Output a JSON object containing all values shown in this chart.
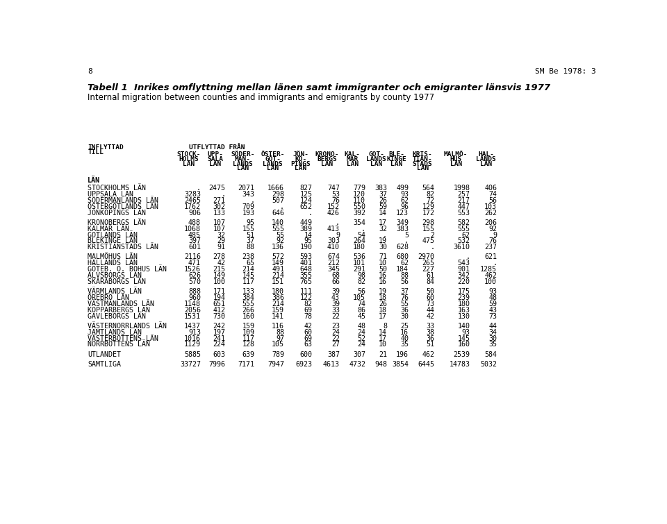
{
  "page_num": "8",
  "ref": "SM Be 1978: 3",
  "title_sv": "Tabell 1  Inrikes omflyttning mellan länen samt immigranter och emigranter länsvis 1977",
  "title_en": "Internal migration between counties and immigrants and emigrants by county 1977",
  "col_headers": [
    [
      "STOCK-",
      "HOLMS",
      "LÄN"
    ],
    [
      "UPP-",
      "SALA",
      "LÄN"
    ],
    [
      "SÖDER-",
      "MAN-",
      "LANDS",
      "LÄN"
    ],
    [
      "ÖSTER-",
      "GÖT-",
      "LANDS",
      "LÄN"
    ],
    [
      "JÖN-",
      "KÖ-",
      "PINGS",
      "LÄN"
    ],
    [
      "KRONO-",
      "BERGS",
      "LÄN"
    ],
    [
      "KAL-",
      "MAR",
      "LÄN"
    ],
    [
      "GOT-",
      "LANDS",
      "LÄN"
    ],
    [
      "BLE-",
      "KINGE",
      "LÄN"
    ],
    [
      "KRIS-",
      "TIAN-",
      "STADS",
      "LÄN"
    ],
    [
      "MALMÖ-",
      "HUS",
      "LÄN"
    ],
    [
      "HAL-",
      "LANDS",
      "LÄN"
    ]
  ],
  "rows": [
    {
      "label": "STOCKHOLMS LÄN",
      "vals": [
        ".",
        "2475",
        "2071",
        "1666",
        "827",
        "747",
        "779",
        "383",
        "499",
        "564",
        "1998",
        "406"
      ],
      "gap": false,
      "bold": false
    },
    {
      "label": "UPPSALA LÄN",
      "vals": [
        "3283",
        ".",
        "343",
        "298",
        "125",
        "53",
        "120",
        "37",
        "93",
        "82",
        "257",
        "74"
      ],
      "gap": false,
      "bold": false
    },
    {
      "label": "SÖDERMANLANDS LÄN",
      "vals": [
        "2465",
        "271",
        ".",
        "507",
        "124",
        "76",
        "110",
        "26",
        "62",
        "72",
        "217",
        "56"
      ],
      "gap": false,
      "bold": false
    },
    {
      "label": "ÖSTERGÖTLANDS LÄN",
      "vals": [
        "1762",
        "302",
        "709",
        ".",
        "652",
        "152",
        "550",
        "59",
        "96",
        "129",
        "447",
        "103"
      ],
      "gap": false,
      "bold": false
    },
    {
      "label": "JÖNKÖPINGS LÄN",
      "vals": [
        "906",
        "133",
        "193",
        "646",
        ".",
        "426",
        "392",
        "14",
        "123",
        "172",
        "553",
        "262"
      ],
      "gap": true,
      "bold": false
    },
    {
      "label": "KRONOBERGS LÄN",
      "vals": [
        "488",
        "107",
        "95",
        "140",
        "449",
        ".",
        "354",
        "17",
        "349",
        "298",
        "582",
        "206"
      ],
      "gap": false,
      "bold": false
    },
    {
      "label": "KALMAR LÄN",
      "vals": [
        "1068",
        "107",
        "155",
        "555",
        "389",
        "413",
        ".",
        "32",
        "383",
        "155",
        "555",
        "92"
      ],
      "gap": false,
      "bold": false
    },
    {
      "label": "GOTLANDS LÄN",
      "vals": [
        "485",
        "32",
        "51",
        "55",
        "14",
        "9",
        "54",
        ".",
        "5",
        "2",
        "62",
        "9"
      ],
      "gap": false,
      "bold": false
    },
    {
      "label": "BLEKINGE LÄN",
      "vals": [
        "397",
        "29",
        "37",
        "92",
        "95",
        "303",
        "264",
        "19",
        ".",
        "475",
        "532",
        "76"
      ],
      "gap": false,
      "bold": false
    },
    {
      "label": "KRISTIANSTADS LÄN",
      "vals": [
        "601",
        "91",
        "88",
        "136",
        "190",
        "410",
        "180",
        "30",
        "628",
        ".",
        "3610",
        "237"
      ],
      "gap": true,
      "bold": false
    },
    {
      "label": "MALMÖHUS LÄN",
      "vals": [
        "2116",
        "278",
        "238",
        "572",
        "593",
        "674",
        "536",
        "71",
        "680",
        "2970",
        ".",
        "621"
      ],
      "gap": false,
      "bold": false
    },
    {
      "label": "HALLANDS LÄN",
      "vals": [
        "471",
        "42",
        "65",
        "149",
        "401",
        "212",
        "101",
        "10",
        "62",
        "265",
        "543",
        "."
      ],
      "gap": false,
      "bold": false
    },
    {
      "label": "GÖTEB. O. BOHUS LÄN",
      "vals": [
        "1526",
        "215",
        "214",
        "491",
        "648",
        "345",
        "291",
        "50",
        "184",
        "227",
        "901",
        "1285"
      ],
      "gap": false,
      "bold": false
    },
    {
      "label": "ÄLVSBORGS LÄN",
      "vals": [
        "626",
        "149",
        "145",
        "214",
        "355",
        "68",
        "98",
        "16",
        "88",
        "61",
        "342",
        "462"
      ],
      "gap": false,
      "bold": false
    },
    {
      "label": "SKARABORGS LÄN",
      "vals": [
        "570",
        "100",
        "117",
        "151",
        "765",
        "66",
        "82",
        "16",
        "56",
        "84",
        "220",
        "100"
      ],
      "gap": true,
      "bold": false
    },
    {
      "label": "VÄRMLANDS LÄN",
      "vals": [
        "888",
        "171",
        "133",
        "180",
        "111",
        "39",
        "56",
        "19",
        "37",
        "50",
        "175",
        "93"
      ],
      "gap": false,
      "bold": false
    },
    {
      "label": "ÖREBRO LÄN",
      "vals": [
        "960",
        "194",
        "384",
        "386",
        "122",
        "43",
        "105",
        "18",
        "76",
        "60",
        "239",
        "48"
      ],
      "gap": false,
      "bold": false
    },
    {
      "label": "VÄSTMANLANDS LÄN",
      "vals": [
        "1148",
        "651",
        "555",
        "214",
        "82",
        "39",
        "74",
        "26",
        "55",
        "73",
        "180",
        "59"
      ],
      "gap": false,
      "bold": false
    },
    {
      "label": "KOPPARBERGS LÄN",
      "vals": [
        "2056",
        "412",
        "266",
        "159",
        "69",
        "33",
        "86",
        "18",
        "36",
        "44",
        "163",
        "43"
      ],
      "gap": false,
      "bold": false
    },
    {
      "label": "GÄVLEBORGS LÄN",
      "vals": [
        "1531",
        "730",
        "160",
        "141",
        "78",
        "22",
        "45",
        "17",
        "30",
        "42",
        "130",
        "73"
      ],
      "gap": true,
      "bold": false
    },
    {
      "label": "VÄSTERNORRLANDS LÄN",
      "vals": [
        "1437",
        "242",
        "159",
        "116",
        "42",
        "23",
        "48",
        "8",
        "25",
        "33",
        "140",
        "44"
      ],
      "gap": false,
      "bold": false
    },
    {
      "label": "JÄMTLANDS LÄN",
      "vals": [
        "913",
        "197",
        "109",
        "88",
        "60",
        "24",
        "24",
        "14",
        "16",
        "38",
        "93",
        "34"
      ],
      "gap": false,
      "bold": false
    },
    {
      "label": "VÄSTERBOTTENS LÄN",
      "vals": [
        "1016",
        "241",
        "117",
        "97",
        "69",
        "22",
        "52",
        "17",
        "40",
        "36",
        "145",
        "30"
      ],
      "gap": false,
      "bold": false
    },
    {
      "label": "NORRBOTTENS LÄN",
      "vals": [
        "1129",
        "224",
        "128",
        "105",
        "63",
        "27",
        "24",
        "10",
        "35",
        "51",
        "160",
        "35"
      ],
      "gap": true,
      "bold": false
    },
    {
      "label": "UTLANDET",
      "vals": [
        "5885",
        "603",
        "639",
        "789",
        "600",
        "387",
        "307",
        "21",
        "196",
        "462",
        "2539",
        "584"
      ],
      "gap": true,
      "bold": false
    },
    {
      "label": "SAMTLIGA",
      "vals": [
        "33727",
        "7996",
        "7171",
        "7947",
        "6923",
        "4613",
        "4732",
        "948",
        "3854",
        "6445",
        "14783",
        "5032"
      ],
      "gap": false,
      "bold": false
    }
  ]
}
